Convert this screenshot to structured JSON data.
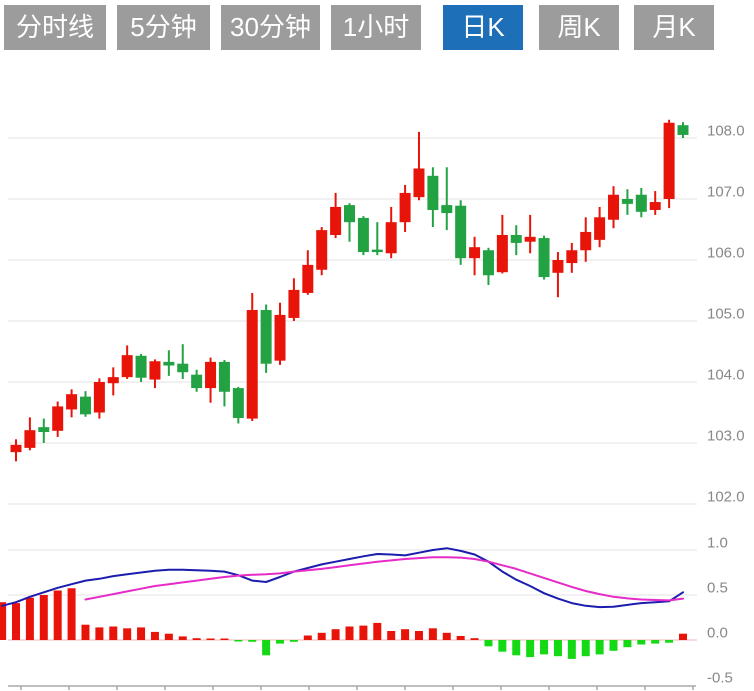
{
  "toolbar": {
    "tabs": [
      {
        "id": "timeshare",
        "label": "分时线",
        "active": false
      },
      {
        "id": "5min",
        "label": "5分钟",
        "active": false
      },
      {
        "id": "30min",
        "label": "30分钟",
        "active": false
      },
      {
        "id": "1hour",
        "label": "1小时",
        "active": false
      },
      {
        "id": "daily-k",
        "label": "日K",
        "active": true
      },
      {
        "id": "weekly-k",
        "label": "周K",
        "active": false
      },
      {
        "id": "monthly-k",
        "label": "月K",
        "active": false
      }
    ],
    "active_bg": "#1d70b8",
    "inactive_bg": "#9c9c9c",
    "text_color": "#ffffff"
  },
  "chart_data": {
    "type": "candlestick",
    "title": "",
    "legend_position": "none",
    "grid": "horizontal",
    "price_panel": {
      "ylabel": "",
      "y_ticks": [
        108.0,
        107.0,
        106.0,
        105.0,
        104.0,
        103.0,
        102.0
      ],
      "y_range": [
        101.5,
        108.6
      ],
      "ohlc_order": "open,high,low,close",
      "up_means": "close>open (red, Chinese convention)",
      "candles": [
        [
          102.85,
          103.06,
          102.7,
          102.97
        ],
        [
          102.92,
          103.42,
          102.88,
          103.21
        ],
        [
          103.26,
          103.4,
          103.0,
          103.18
        ],
        [
          103.2,
          103.68,
          103.1,
          103.6
        ],
        [
          103.55,
          103.88,
          103.42,
          103.8
        ],
        [
          103.76,
          103.85,
          103.43,
          103.47
        ],
        [
          103.5,
          104.06,
          103.4,
          104.0
        ],
        [
          103.98,
          104.24,
          103.78,
          104.08
        ],
        [
          104.08,
          104.6,
          104.05,
          104.44
        ],
        [
          104.43,
          104.46,
          104.0,
          104.07
        ],
        [
          104.04,
          104.37,
          103.9,
          104.34
        ],
        [
          104.33,
          104.52,
          104.1,
          104.27
        ],
        [
          104.3,
          104.62,
          104.05,
          104.16
        ],
        [
          104.12,
          104.2,
          103.84,
          103.9
        ],
        [
          103.9,
          104.4,
          103.66,
          104.33
        ],
        [
          104.33,
          104.36,
          103.6,
          103.84
        ],
        [
          103.9,
          103.92,
          103.32,
          103.41
        ],
        [
          103.4,
          105.46,
          103.36,
          105.18
        ],
        [
          105.18,
          105.27,
          104.15,
          104.3
        ],
        [
          104.35,
          105.3,
          104.28,
          105.1
        ],
        [
          105.05,
          105.7,
          105.0,
          105.51
        ],
        [
          105.46,
          106.16,
          105.43,
          105.92
        ],
        [
          105.84,
          106.54,
          105.75,
          106.49
        ],
        [
          106.41,
          107.1,
          106.36,
          106.87
        ],
        [
          106.9,
          106.93,
          106.3,
          106.62
        ],
        [
          106.69,
          106.72,
          106.08,
          106.13
        ],
        [
          106.17,
          106.62,
          106.08,
          106.13
        ],
        [
          106.11,
          106.87,
          106.03,
          106.62
        ],
        [
          106.62,
          107.23,
          106.46,
          107.1
        ],
        [
          107.03,
          108.1,
          106.98,
          107.5
        ],
        [
          107.38,
          107.52,
          106.54,
          106.82
        ],
        [
          106.9,
          107.52,
          106.49,
          106.77
        ],
        [
          106.89,
          106.98,
          105.92,
          106.03
        ],
        [
          106.03,
          106.38,
          105.75,
          106.21
        ],
        [
          106.16,
          106.2,
          105.59,
          105.75
        ],
        [
          105.8,
          106.74,
          105.78,
          106.41
        ],
        [
          106.41,
          106.57,
          106.08,
          106.28
        ],
        [
          106.3,
          106.74,
          106.11,
          106.38
        ],
        [
          106.36,
          106.4,
          105.68,
          105.72
        ],
        [
          105.79,
          106.13,
          105.39,
          106.0
        ],
        [
          105.95,
          106.28,
          105.79,
          106.16
        ],
        [
          106.16,
          106.7,
          105.97,
          106.46
        ],
        [
          106.33,
          106.87,
          106.21,
          106.7
        ],
        [
          106.66,
          107.21,
          106.52,
          107.07
        ],
        [
          107.0,
          107.16,
          106.74,
          106.92
        ],
        [
          107.07,
          107.18,
          106.7,
          106.79
        ],
        [
          106.82,
          107.13,
          106.74,
          106.95
        ],
        [
          107.0,
          108.3,
          106.85,
          108.25
        ],
        [
          108.21,
          108.26,
          108.0,
          108.05
        ]
      ]
    },
    "macd_panel": {
      "y_ticks": [
        1.0,
        0.5,
        0.0,
        -0.5
      ],
      "y_range": [
        -0.55,
        1.05
      ],
      "histogram": [
        0.41,
        0.47,
        0.5,
        0.55,
        0.575,
        0.17,
        0.14,
        0.15,
        0.13,
        0.14,
        0.09,
        0.07,
        0.04,
        0.02,
        0.015,
        0.01,
        -0.01,
        -0.02,
        -0.17,
        -0.04,
        -0.02,
        0.05,
        0.08,
        0.12,
        0.15,
        0.16,
        0.19,
        0.1,
        0.12,
        0.1,
        0.13,
        0.08,
        0.045,
        0.02,
        -0.07,
        -0.13,
        -0.17,
        -0.19,
        -0.16,
        -0.18,
        -0.21,
        -0.18,
        -0.16,
        -0.12,
        -0.08,
        -0.05,
        -0.04,
        -0.03,
        0.07
      ],
      "left_clipped_bar": 0.42,
      "dif_left_start": 0.38,
      "dif": [
        0.42,
        0.48,
        0.53,
        0.58,
        0.62,
        0.66,
        0.68,
        0.71,
        0.73,
        0.75,
        0.77,
        0.78,
        0.78,
        0.775,
        0.77,
        0.76,
        0.72,
        0.66,
        0.645,
        0.7,
        0.76,
        0.8,
        0.84,
        0.87,
        0.9,
        0.93,
        0.955,
        0.95,
        0.94,
        0.97,
        1.0,
        1.02,
        0.99,
        0.95,
        0.87,
        0.76,
        0.67,
        0.6,
        0.52,
        0.46,
        0.41,
        0.38,
        0.365,
        0.37,
        0.39,
        0.41,
        0.42,
        0.43,
        0.53
      ],
      "dea_start_index": 5,
      "dea": [
        0.45,
        0.48,
        0.51,
        0.54,
        0.57,
        0.6,
        0.62,
        0.64,
        0.66,
        0.68,
        0.7,
        0.715,
        0.725,
        0.73,
        0.74,
        0.76,
        0.775,
        0.79,
        0.81,
        0.83,
        0.85,
        0.87,
        0.885,
        0.9,
        0.91,
        0.92,
        0.92,
        0.915,
        0.9,
        0.87,
        0.83,
        0.79,
        0.74,
        0.69,
        0.64,
        0.59,
        0.545,
        0.51,
        0.48,
        0.462,
        0.45,
        0.445,
        0.44,
        0.46
      ]
    },
    "colors": {
      "up": "#e8140a",
      "down": "#22a243",
      "hist_up": "#e8140a",
      "hist_down": "#16d916",
      "dif_line": "#1c1cae",
      "dea_line": "#e62bc8",
      "grid": "#e3e3e3",
      "zero_line": "#f0b6b6",
      "axis": "#a9a9a9",
      "label": "#888888"
    }
  }
}
